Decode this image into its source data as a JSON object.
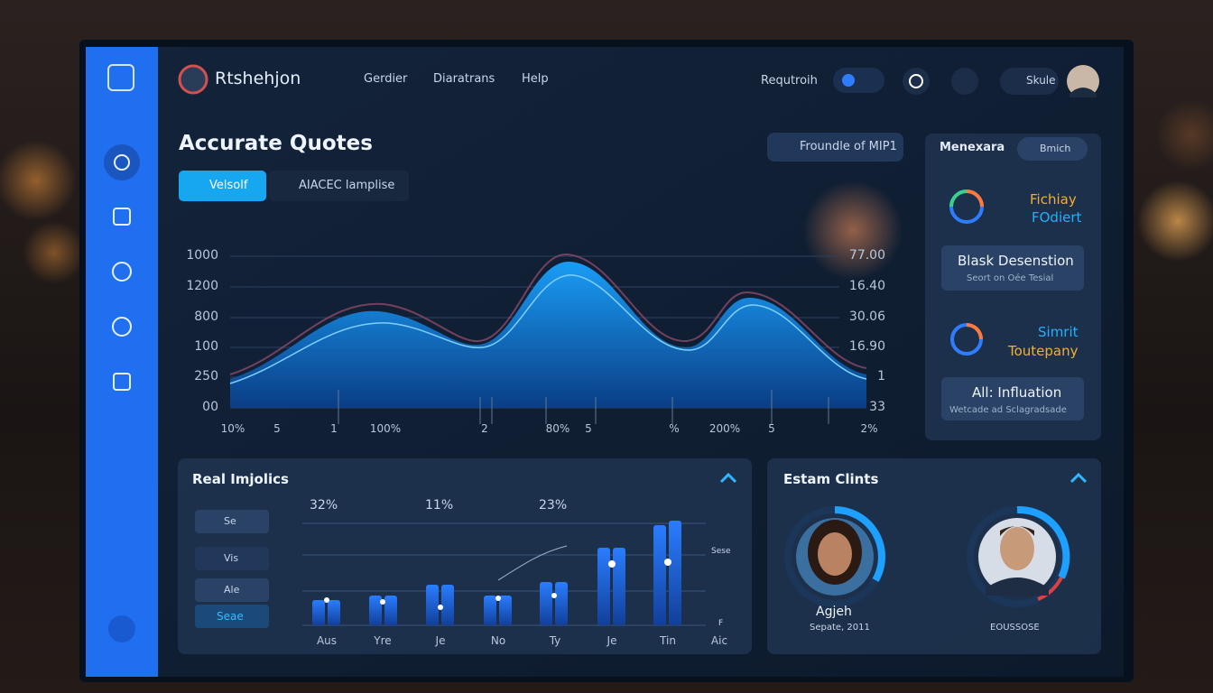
{
  "header": {
    "logo": "Rtshehjon",
    "nav": [
      "Gerdier",
      "Diaratrans",
      "Help"
    ],
    "search": "Requtroih",
    "user": "Skule"
  },
  "main": {
    "title": "Accurate Quotes",
    "tabs": [
      "Velsolf",
      "AIACEC lamplise"
    ],
    "button": "Froundle of MIP1",
    "left_axis": [
      "1000",
      "1200",
      "800",
      "100",
      "250",
      "00"
    ],
    "right_axis": [
      "77.00",
      "16.40",
      "30.06",
      "16.90",
      "1",
      "33"
    ],
    "x_axis": [
      "10%",
      "5",
      "1",
      "100%",
      "2",
      "80%",
      "5",
      "%",
      "200%",
      "5",
      "2%"
    ]
  },
  "side_panel": {
    "title": "Menexara",
    "button": "Bmich",
    "items": [
      {
        "line1": "Fichiay",
        "line2": "FOdiert"
      },
      {
        "line1": "Blask Desenstion",
        "line2": "Seort on Oée Tesial"
      },
      {
        "line1": "Simrit",
        "line2": "Toutepany"
      },
      {
        "line1": "All: Influation",
        "line2": "Wetcade ad Sclagradsade"
      }
    ]
  },
  "impacts": {
    "title": "Real Imjolics",
    "filters": [
      "Se",
      "Vis",
      "Ale",
      "Seae"
    ],
    "percents": [
      "32%",
      "11%",
      "23%"
    ],
    "x_axis": [
      "Aus",
      "Yre",
      "Je",
      "No",
      "Ty",
      "Je",
      "Tin",
      "Aic"
    ],
    "side_labels": [
      "Sese",
      "F"
    ]
  },
  "clients": {
    "title": "Estam Clints",
    "items": [
      {
        "name": "Agjeh",
        "caption": "Sepate, 2011"
      },
      {
        "caption": "EOUSSOSE"
      }
    ]
  }
}
